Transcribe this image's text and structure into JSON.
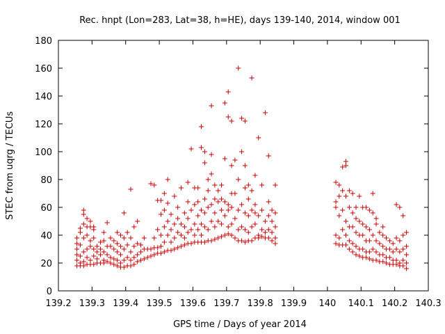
{
  "chart_data": {
    "type": "scatter",
    "title": "Rec. hnpt (Lon=283, Lat=38, h=HE), days 139-140, 2014, window 001",
    "xlabel": "GPS time / Days of year 2014",
    "ylabel": "STEC from uqrg / TECUs",
    "xlim": [
      139.2,
      140.3
    ],
    "ylim": [
      0,
      180
    ],
    "xticks": [
      "139.2",
      "139.3",
      "139.4",
      "139.5",
      "139.6",
      "139.7",
      "139.8",
      "139.9",
      "140",
      "140.1",
      "140.2",
      "140.3"
    ],
    "yticks": [
      "0",
      "20",
      "40",
      "60",
      "80",
      "100",
      "120",
      "140",
      "160",
      "180"
    ],
    "grid": false,
    "marker": "+",
    "color": "#cc0000",
    "points": [
      [
        139.255,
        18
      ],
      [
        139.255,
        22
      ],
      [
        139.255,
        26
      ],
      [
        139.255,
        30
      ],
      [
        139.255,
        34
      ],
      [
        139.255,
        38
      ],
      [
        139.265,
        18
      ],
      [
        139.265,
        20
      ],
      [
        139.265,
        25
      ],
      [
        139.265,
        33
      ],
      [
        139.265,
        42
      ],
      [
        139.265,
        45
      ],
      [
        139.275,
        18
      ],
      [
        139.275,
        21
      ],
      [
        139.275,
        28
      ],
      [
        139.275,
        38
      ],
      [
        139.275,
        48
      ],
      [
        139.275,
        55
      ],
      [
        139.275,
        58
      ],
      [
        139.285,
        19
      ],
      [
        139.285,
        24
      ],
      [
        139.285,
        30
      ],
      [
        139.285,
        40
      ],
      [
        139.285,
        46
      ],
      [
        139.285,
        52
      ],
      [
        139.295,
        19
      ],
      [
        139.295,
        22
      ],
      [
        139.295,
        32
      ],
      [
        139.295,
        36
      ],
      [
        139.295,
        46
      ],
      [
        139.295,
        50
      ],
      [
        139.305,
        19
      ],
      [
        139.305,
        25
      ],
      [
        139.305,
        30
      ],
      [
        139.305,
        38
      ],
      [
        139.305,
        44
      ],
      [
        139.305,
        46
      ],
      [
        139.315,
        20
      ],
      [
        139.315,
        23
      ],
      [
        139.315,
        28
      ],
      [
        139.315,
        32
      ],
      [
        139.325,
        20
      ],
      [
        139.325,
        26
      ],
      [
        139.325,
        30
      ],
      [
        139.325,
        35
      ],
      [
        139.335,
        20
      ],
      [
        139.335,
        22
      ],
      [
        139.335,
        28
      ],
      [
        139.335,
        36
      ],
      [
        139.335,
        42
      ],
      [
        139.345,
        21
      ],
      [
        139.345,
        26
      ],
      [
        139.345,
        32
      ],
      [
        139.345,
        49
      ],
      [
        139.355,
        20
      ],
      [
        139.355,
        24
      ],
      [
        139.355,
        32
      ],
      [
        139.355,
        38
      ],
      [
        139.365,
        19
      ],
      [
        139.365,
        23
      ],
      [
        139.365,
        30
      ],
      [
        139.365,
        36
      ],
      [
        139.375,
        18
      ],
      [
        139.375,
        22
      ],
      [
        139.375,
        28
      ],
      [
        139.375,
        34
      ],
      [
        139.375,
        42
      ],
      [
        139.385,
        17
      ],
      [
        139.385,
        20
      ],
      [
        139.385,
        26
      ],
      [
        139.385,
        32
      ],
      [
        139.385,
        40
      ],
      [
        139.395,
        17
      ],
      [
        139.395,
        22
      ],
      [
        139.395,
        30
      ],
      [
        139.395,
        38
      ],
      [
        139.395,
        56
      ],
      [
        139.405,
        18
      ],
      [
        139.405,
        24
      ],
      [
        139.405,
        33
      ],
      [
        139.405,
        42
      ],
      [
        139.415,
        18
      ],
      [
        139.415,
        22
      ],
      [
        139.415,
        28
      ],
      [
        139.415,
        38
      ],
      [
        139.415,
        73
      ],
      [
        139.425,
        19
      ],
      [
        139.425,
        24
      ],
      [
        139.425,
        32
      ],
      [
        139.425,
        46
      ],
      [
        139.435,
        21
      ],
      [
        139.435,
        26
      ],
      [
        139.435,
        34
      ],
      [
        139.435,
        50
      ],
      [
        139.445,
        22
      ],
      [
        139.445,
        28
      ],
      [
        139.445,
        33
      ],
      [
        139.455,
        23
      ],
      [
        139.455,
        30
      ],
      [
        139.455,
        38
      ],
      [
        139.465,
        24
      ],
      [
        139.465,
        30
      ],
      [
        139.475,
        25
      ],
      [
        139.475,
        30
      ],
      [
        139.475,
        77
      ],
      [
        139.485,
        26
      ],
      [
        139.485,
        31
      ],
      [
        139.485,
        38
      ],
      [
        139.485,
        76
      ],
      [
        139.495,
        27
      ],
      [
        139.495,
        31
      ],
      [
        139.495,
        44
      ],
      [
        139.495,
        65
      ],
      [
        139.505,
        27
      ],
      [
        139.505,
        32
      ],
      [
        139.505,
        40
      ],
      [
        139.505,
        55
      ],
      [
        139.505,
        65
      ],
      [
        139.515,
        28
      ],
      [
        139.515,
        35
      ],
      [
        139.515,
        46
      ],
      [
        139.515,
        58
      ],
      [
        139.515,
        70
      ],
      [
        139.525,
        29
      ],
      [
        139.525,
        40
      ],
      [
        139.525,
        50
      ],
      [
        139.525,
        63
      ],
      [
        139.525,
        80
      ],
      [
        139.535,
        29
      ],
      [
        139.535,
        35
      ],
      [
        139.535,
        44
      ],
      [
        139.535,
        55
      ],
      [
        139.545,
        30
      ],
      [
        139.545,
        38
      ],
      [
        139.545,
        48
      ],
      [
        139.545,
        68
      ],
      [
        139.555,
        31
      ],
      [
        139.555,
        42
      ],
      [
        139.555,
        52
      ],
      [
        139.555,
        60
      ],
      [
        139.565,
        32
      ],
      [
        139.565,
        40
      ],
      [
        139.565,
        48
      ],
      [
        139.565,
        74
      ],
      [
        139.575,
        33
      ],
      [
        139.575,
        38
      ],
      [
        139.575,
        46
      ],
      [
        139.575,
        56
      ],
      [
        139.585,
        34
      ],
      [
        139.585,
        42
      ],
      [
        139.585,
        52
      ],
      [
        139.585,
        64
      ],
      [
        139.585,
        78
      ],
      [
        139.595,
        34
      ],
      [
        139.595,
        44
      ],
      [
        139.595,
        58
      ],
      [
        139.595,
        102
      ],
      [
        139.605,
        35
      ],
      [
        139.605,
        40
      ],
      [
        139.605,
        48
      ],
      [
        139.605,
        62
      ],
      [
        139.605,
        74
      ],
      [
        139.615,
        35
      ],
      [
        139.615,
        44
      ],
      [
        139.615,
        54
      ],
      [
        139.615,
        64
      ],
      [
        139.615,
        74
      ],
      [
        139.625,
        35
      ],
      [
        139.625,
        40
      ],
      [
        139.625,
        48
      ],
      [
        139.625,
        58
      ],
      [
        139.625,
        103
      ],
      [
        139.625,
        118
      ],
      [
        139.635,
        35
      ],
      [
        139.635,
        46
      ],
      [
        139.635,
        56
      ],
      [
        139.635,
        66
      ],
      [
        139.635,
        92
      ],
      [
        139.635,
        100
      ],
      [
        139.645,
        36
      ],
      [
        139.645,
        44
      ],
      [
        139.645,
        60
      ],
      [
        139.645,
        72
      ],
      [
        139.645,
        80
      ],
      [
        139.655,
        36
      ],
      [
        139.655,
        50
      ],
      [
        139.655,
        62
      ],
      [
        139.655,
        84
      ],
      [
        139.655,
        98
      ],
      [
        139.655,
        133
      ],
      [
        139.665,
        37
      ],
      [
        139.665,
        46
      ],
      [
        139.665,
        56
      ],
      [
        139.665,
        66
      ],
      [
        139.665,
        76
      ],
      [
        139.675,
        38
      ],
      [
        139.675,
        50
      ],
      [
        139.675,
        64
      ],
      [
        139.675,
        72
      ],
      [
        139.685,
        39
      ],
      [
        139.685,
        48
      ],
      [
        139.685,
        58
      ],
      [
        139.685,
        66
      ],
      [
        139.685,
        76
      ],
      [
        139.695,
        40
      ],
      [
        139.695,
        54
      ],
      [
        139.695,
        64
      ],
      [
        139.695,
        95
      ],
      [
        139.695,
        135
      ],
      [
        139.705,
        41
      ],
      [
        139.705,
        46
      ],
      [
        139.705,
        58
      ],
      [
        139.705,
        62
      ],
      [
        139.705,
        125
      ],
      [
        139.705,
        143
      ],
      [
        139.715,
        40
      ],
      [
        139.715,
        48
      ],
      [
        139.715,
        60
      ],
      [
        139.715,
        70
      ],
      [
        139.715,
        90
      ],
      [
        139.715,
        122
      ],
      [
        139.725,
        38
      ],
      [
        139.725,
        52
      ],
      [
        139.725,
        70
      ],
      [
        139.725,
        94
      ],
      [
        139.735,
        36
      ],
      [
        139.735,
        44
      ],
      [
        139.735,
        58
      ],
      [
        139.735,
        80
      ],
      [
        139.735,
        160
      ],
      [
        139.745,
        36
      ],
      [
        139.745,
        46
      ],
      [
        139.745,
        62
      ],
      [
        139.745,
        100
      ],
      [
        139.745,
        124
      ],
      [
        139.755,
        35
      ],
      [
        139.755,
        44
      ],
      [
        139.755,
        56
      ],
      [
        139.755,
        74
      ],
      [
        139.755,
        90
      ],
      [
        139.755,
        122
      ],
      [
        139.765,
        36
      ],
      [
        139.765,
        42
      ],
      [
        139.765,
        54
      ],
      [
        139.765,
        66
      ],
      [
        139.765,
        76
      ],
      [
        139.775,
        36
      ],
      [
        139.775,
        46
      ],
      [
        139.775,
        58
      ],
      [
        139.775,
        72
      ],
      [
        139.775,
        153
      ],
      [
        139.785,
        38
      ],
      [
        139.785,
        48
      ],
      [
        139.785,
        56
      ],
      [
        139.785,
        62
      ],
      [
        139.785,
        83
      ],
      [
        139.795,
        38
      ],
      [
        139.795,
        40
      ],
      [
        139.795,
        54
      ],
      [
        139.795,
        110
      ],
      [
        139.805,
        39
      ],
      [
        139.805,
        44
      ],
      [
        139.805,
        58
      ],
      [
        139.805,
        76
      ],
      [
        139.815,
        38
      ],
      [
        139.815,
        42
      ],
      [
        139.815,
        50
      ],
      [
        139.815,
        128
      ],
      [
        139.825,
        38
      ],
      [
        139.825,
        44
      ],
      [
        139.825,
        54
      ],
      [
        139.825,
        64
      ],
      [
        139.825,
        97
      ],
      [
        139.835,
        36
      ],
      [
        139.835,
        42
      ],
      [
        139.835,
        50
      ],
      [
        139.835,
        58
      ],
      [
        139.845,
        34
      ],
      [
        139.845,
        38
      ],
      [
        139.845,
        46
      ],
      [
        139.845,
        56
      ],
      [
        139.845,
        76
      ],
      [
        140.025,
        34
      ],
      [
        140.025,
        40
      ],
      [
        140.025,
        60
      ],
      [
        140.025,
        64
      ],
      [
        140.025,
        78
      ],
      [
        140.035,
        33
      ],
      [
        140.035,
        38
      ],
      [
        140.035,
        54
      ],
      [
        140.035,
        68
      ],
      [
        140.035,
        76
      ],
      [
        140.045,
        33
      ],
      [
        140.045,
        44
      ],
      [
        140.045,
        58
      ],
      [
        140.045,
        72
      ],
      [
        140.045,
        89
      ],
      [
        140.055,
        33
      ],
      [
        140.055,
        40
      ],
      [
        140.055,
        50
      ],
      [
        140.055,
        68
      ],
      [
        140.055,
        90
      ],
      [
        140.055,
        93
      ],
      [
        140.065,
        30
      ],
      [
        140.065,
        36
      ],
      [
        140.065,
        46
      ],
      [
        140.065,
        60
      ],
      [
        140.065,
        72
      ],
      [
        140.075,
        28
      ],
      [
        140.075,
        34
      ],
      [
        140.075,
        46
      ],
      [
        140.075,
        56
      ],
      [
        140.075,
        70
      ],
      [
        140.085,
        26
      ],
      [
        140.085,
        32
      ],
      [
        140.085,
        42
      ],
      [
        140.085,
        52
      ],
      [
        140.085,
        60
      ],
      [
        140.095,
        25
      ],
      [
        140.095,
        30
      ],
      [
        140.095,
        40
      ],
      [
        140.095,
        50
      ],
      [
        140.095,
        68
      ],
      [
        140.105,
        24
      ],
      [
        140.105,
        30
      ],
      [
        140.105,
        40
      ],
      [
        140.105,
        48
      ],
      [
        140.105,
        60
      ],
      [
        140.115,
        24
      ],
      [
        140.115,
        28
      ],
      [
        140.115,
        36
      ],
      [
        140.115,
        46
      ],
      [
        140.115,
        60
      ],
      [
        140.125,
        23
      ],
      [
        140.125,
        28
      ],
      [
        140.125,
        36
      ],
      [
        140.125,
        44
      ],
      [
        140.125,
        58
      ],
      [
        140.135,
        22
      ],
      [
        140.135,
        30
      ],
      [
        140.135,
        40
      ],
      [
        140.135,
        56
      ],
      [
        140.135,
        70
      ],
      [
        140.145,
        22
      ],
      [
        140.145,
        28
      ],
      [
        140.145,
        36
      ],
      [
        140.145,
        48
      ],
      [
        140.145,
        52
      ],
      [
        140.155,
        21
      ],
      [
        140.155,
        26
      ],
      [
        140.155,
        34
      ],
      [
        140.155,
        42
      ],
      [
        140.165,
        21
      ],
      [
        140.165,
        26
      ],
      [
        140.165,
        32
      ],
      [
        140.165,
        40
      ],
      [
        140.165,
        46
      ],
      [
        140.175,
        20
      ],
      [
        140.175,
        24
      ],
      [
        140.175,
        30
      ],
      [
        140.175,
        38
      ],
      [
        140.185,
        19
      ],
      [
        140.185,
        24
      ],
      [
        140.185,
        30
      ],
      [
        140.185,
        36
      ],
      [
        140.195,
        19
      ],
      [
        140.195,
        22
      ],
      [
        140.195,
        28
      ],
      [
        140.195,
        34
      ],
      [
        140.205,
        19
      ],
      [
        140.205,
        22
      ],
      [
        140.205,
        30
      ],
      [
        140.205,
        38
      ],
      [
        140.205,
        62
      ],
      [
        140.215,
        18
      ],
      [
        140.215,
        20
      ],
      [
        140.215,
        28
      ],
      [
        140.215,
        36
      ],
      [
        140.215,
        60
      ],
      [
        140.225,
        18
      ],
      [
        140.225,
        22
      ],
      [
        140.225,
        30
      ],
      [
        140.225,
        40
      ],
      [
        140.225,
        54
      ],
      [
        140.235,
        16
      ],
      [
        140.235,
        20
      ],
      [
        140.235,
        26
      ],
      [
        140.235,
        32
      ],
      [
        140.235,
        42
      ]
    ]
  }
}
